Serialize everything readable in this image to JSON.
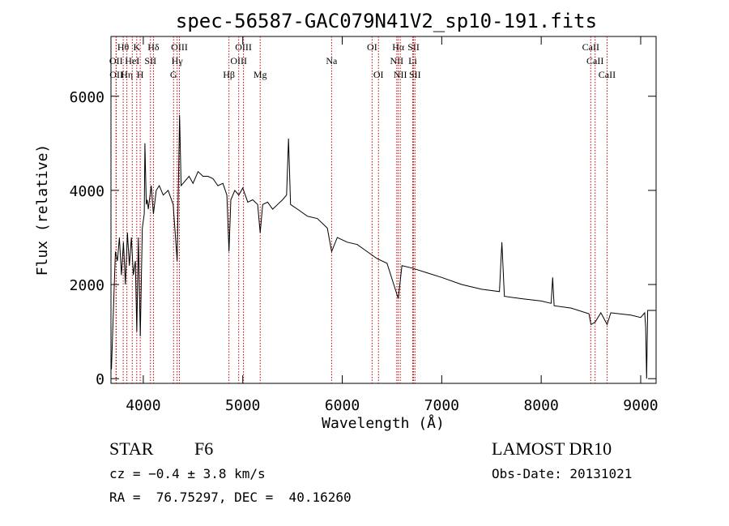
{
  "chart_data": {
    "type": "line",
    "title": "spec-56587-GAC079N41V2_sp10-191.fits",
    "xlabel": "Wavelength (Å)",
    "ylabel": "Flux (relative)",
    "color": "#000000",
    "xlim": [
      3675,
      9155
    ],
    "ylim": [
      -100,
      7270
    ],
    "xticks": [
      4000,
      5000,
      6000,
      7000,
      8000,
      9000
    ],
    "yticks": [
      0,
      2000,
      4000,
      6000
    ],
    "x": [
      3680,
      3700,
      3720,
      3740,
      3760,
      3780,
      3800,
      3820,
      3840,
      3860,
      3880,
      3900,
      3920,
      3935,
      3950,
      3970,
      3990,
      4010,
      4016,
      4030,
      4040,
      4050,
      4080,
      4102,
      4130,
      4160,
      4200,
      4250,
      4300,
      4340,
      4365,
      4380,
      4420,
      4460,
      4500,
      4550,
      4600,
      4650,
      4700,
      4750,
      4800,
      4840,
      4861,
      4880,
      4920,
      4960,
      5000,
      5050,
      5100,
      5150,
      5175,
      5200,
      5250,
      5300,
      5350,
      5400,
      5440,
      5460,
      5480,
      5550,
      5650,
      5750,
      5850,
      5893,
      5950,
      6050,
      6150,
      6250,
      6350,
      6450,
      6563,
      6600,
      6700,
      6850,
      7000,
      7200,
      7400,
      7580,
      7605,
      7630,
      7800,
      8000,
      8100,
      8115,
      8130,
      8300,
      8480,
      8500,
      8542,
      8600,
      8662,
      8700,
      8900,
      9000,
      9040,
      9050,
      9060,
      9070,
      9150
    ],
    "values": [
      200,
      1500,
      2700,
      2500,
      3000,
      2200,
      2900,
      2000,
      3100,
      2400,
      3000,
      2200,
      2500,
      1000,
      3000,
      900,
      3200,
      3500,
      5000,
      3700,
      3800,
      3600,
      4100,
      3500,
      4000,
      4100,
      3900,
      4000,
      3700,
      2500,
      5600,
      4100,
      4200,
      4300,
      4150,
      4400,
      4300,
      4300,
      4250,
      4100,
      4150,
      3900,
      2700,
      3800,
      4000,
      3900,
      4050,
      3750,
      3800,
      3700,
      3100,
      3700,
      3750,
      3600,
      3700,
      3800,
      3900,
      5100,
      3700,
      3600,
      3450,
      3400,
      3200,
      2700,
      3000,
      2900,
      2850,
      2700,
      2550,
      2450,
      1700,
      2400,
      2350,
      2250,
      2150,
      2000,
      1900,
      1850,
      2900,
      1750,
      1700,
      1650,
      1600,
      2150,
      1550,
      1500,
      1380,
      1150,
      1200,
      1400,
      1150,
      1400,
      1350,
      1300,
      1400,
      1100,
      0,
      1450,
      1450
    ],
    "lines": [
      {
        "label": "OII",
        "x": 3726
      },
      {
        "label": "OII",
        "x": 3729
      },
      {
        "label": "Hθ",
        "x": 3798
      },
      {
        "label": "Hη",
        "x": 3835
      },
      {
        "label": "HeI",
        "x": 3889
      },
      {
        "label": "K",
        "x": 3934
      },
      {
        "label": "H",
        "x": 3969
      },
      {
        "label": "SII",
        "x": 4072
      },
      {
        "label": "Hδ",
        "x": 4102
      },
      {
        "label": "G",
        "x": 4304
      },
      {
        "label": "Hγ",
        "x": 4340
      },
      {
        "label": "OIII",
        "x": 4363
      },
      {
        "label": "Hβ",
        "x": 4861
      },
      {
        "label": "OIII",
        "x": 4959
      },
      {
        "label": "OIII",
        "x": 5007
      },
      {
        "label": "Mg",
        "x": 5175
      },
      {
        "label": "Na",
        "x": 5893
      },
      {
        "label": "OI",
        "x": 6300
      },
      {
        "label": "OI",
        "x": 6364
      },
      {
        "label": "NII",
        "x": 6548
      },
      {
        "label": "Hα",
        "x": 6563
      },
      {
        "label": "NII",
        "x": 6583
      },
      {
        "label": "Li",
        "x": 6708
      },
      {
        "label": "SII",
        "x": 6717
      },
      {
        "label": "SII",
        "x": 6731
      },
      {
        "label": "CaII",
        "x": 8498
      },
      {
        "label": "CaII",
        "x": 8542
      },
      {
        "label": "CaII",
        "x": 8662
      }
    ],
    "class": "STAR",
    "subclass": "F6",
    "survey": "LAMOST DR10",
    "velocity": "cz = −0.4 ± 3.8 km/s",
    "obs_date": "Obs-Date: 20131021",
    "coords": "RA =  76.75297, DEC =  40.16260"
  }
}
